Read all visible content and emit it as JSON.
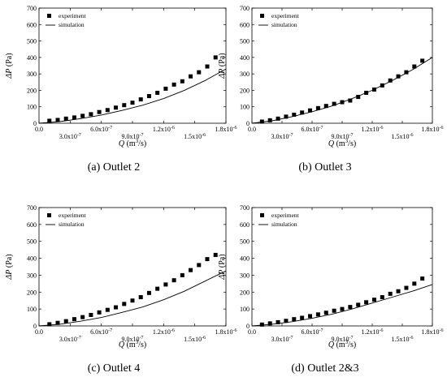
{
  "figure": {
    "captions": [
      "(a) Outlet 2",
      "(b) Outlet 3",
      "(c) Outlet 4",
      "(d) Outlet 2&3"
    ]
  },
  "chart_data": [
    {
      "type": "scatter",
      "caption": "(a) Outlet 2",
      "xlabel": "Q (m3/s)",
      "ylabel": "ΔP (Pa)",
      "xlim": [
        0,
        1.8e-06
      ],
      "ylim": [
        0,
        700
      ],
      "x_ticks": [
        "0.0",
        "3.0x10-7",
        "6.0x10-7",
        "9.0x10-7",
        "1.2x10-6",
        "1.5x10-6",
        "1.8x10-6"
      ],
      "y_ticks": [
        "0",
        "100",
        "200",
        "300",
        "400",
        "500",
        "600",
        "700"
      ],
      "legend": {
        "position": "top-left",
        "entries": [
          "experiment",
          "simulation"
        ]
      },
      "series": [
        {
          "name": "experiment",
          "kind": "markers",
          "x": [
            1e-07,
            1.8e-07,
            2.6e-07,
            3.4e-07,
            4.2e-07,
            5e-07,
            5.8e-07,
            6.6e-07,
            7.4e-07,
            8.2e-07,
            9e-07,
            9.8e-07,
            1.06e-06,
            1.14e-06,
            1.22e-06,
            1.3e-06,
            1.38e-06,
            1.46e-06,
            1.54e-06,
            1.62e-06,
            1.7e-06
          ],
          "y": [
            15,
            20,
            28,
            35,
            45,
            55,
            68,
            80,
            95,
            110,
            125,
            145,
            165,
            185,
            210,
            235,
            255,
            285,
            310,
            345,
            400
          ]
        },
        {
          "name": "simulation",
          "kind": "line",
          "x": [
            0,
            2e-07,
            4e-07,
            6e-07,
            8e-07,
            1e-06,
            1.2e-06,
            1.4e-06,
            1.6e-06,
            1.8e-06
          ],
          "y": [
            0,
            10,
            28,
            50,
            78,
            110,
            150,
            200,
            260,
            330
          ]
        }
      ]
    },
    {
      "type": "scatter",
      "caption": "(b) Outlet 3",
      "xlabel": "Q (m3/s)",
      "ylabel": "ΔP (Pa)",
      "xlim": [
        0,
        1.8e-06
      ],
      "ylim": [
        0,
        700
      ],
      "x_ticks": [
        "0.0",
        "3.0x10-7",
        "6.0x10-7",
        "9.0x10-7",
        "1.2x10-6",
        "1.5x10-6",
        "1.8x10-6"
      ],
      "y_ticks": [
        "0",
        "100",
        "200",
        "300",
        "400",
        "500",
        "600",
        "700"
      ],
      "legend": {
        "position": "top-left",
        "entries": [
          "experiment",
          "simulation"
        ]
      },
      "series": [
        {
          "name": "experiment",
          "kind": "markers",
          "x": [
            1e-07,
            1.8e-07,
            2.6e-07,
            3.4e-07,
            4.2e-07,
            5e-07,
            5.8e-07,
            6.6e-07,
            7.4e-07,
            8.2e-07,
            9e-07,
            9.8e-07,
            1.06e-06,
            1.14e-06,
            1.22e-06,
            1.3e-06,
            1.38e-06,
            1.46e-06,
            1.54e-06,
            1.62e-06,
            1.7e-06
          ],
          "y": [
            10,
            18,
            28,
            40,
            52,
            65,
            78,
            92,
            105,
            118,
            128,
            138,
            160,
            185,
            205,
            230,
            260,
            285,
            310,
            345,
            380
          ]
        },
        {
          "name": "simulation",
          "kind": "line",
          "x": [
            0,
            2e-07,
            4e-07,
            6e-07,
            8e-07,
            1e-06,
            1.2e-06,
            1.4e-06,
            1.6e-06,
            1.8e-06
          ],
          "y": [
            0,
            15,
            40,
            70,
            105,
            150,
            200,
            260,
            325,
            400
          ]
        }
      ]
    },
    {
      "type": "scatter",
      "caption": "(c) Outlet 4",
      "xlabel": "Q (m3/s)",
      "ylabel": "ΔP (Pa)",
      "xlim": [
        0,
        1.8e-06
      ],
      "ylim": [
        0,
        700
      ],
      "x_ticks": [
        "0.0",
        "3.0x10-7",
        "6.0x10-7",
        "9.0x10-7",
        "1.2x10-6",
        "1.5x10-6",
        "1.8x10-6"
      ],
      "y_ticks": [
        "0",
        "100",
        "200",
        "300",
        "400",
        "500",
        "600",
        "700"
      ],
      "legend": {
        "position": "top-left",
        "entries": [
          "experiment",
          "simulation"
        ]
      },
      "series": [
        {
          "name": "experiment",
          "kind": "markers",
          "x": [
            1e-07,
            1.8e-07,
            2.6e-07,
            3.4e-07,
            4.2e-07,
            5e-07,
            5.8e-07,
            6.6e-07,
            7.4e-07,
            8.2e-07,
            9e-07,
            9.8e-07,
            1.06e-06,
            1.14e-06,
            1.22e-06,
            1.3e-06,
            1.38e-06,
            1.46e-06,
            1.54e-06,
            1.62e-06,
            1.7e-06
          ],
          "y": [
            10,
            18,
            28,
            40,
            52,
            65,
            80,
            95,
            110,
            130,
            150,
            170,
            195,
            220,
            245,
            270,
            300,
            330,
            360,
            395,
            420
          ]
        },
        {
          "name": "simulation",
          "kind": "line",
          "x": [
            0,
            2e-07,
            4e-07,
            6e-07,
            8e-07,
            1e-06,
            1.2e-06,
            1.4e-06,
            1.6e-06,
            1.8e-06
          ],
          "y": [
            0,
            10,
            28,
            50,
            80,
            112,
            155,
            205,
            265,
            325
          ]
        }
      ]
    },
    {
      "type": "scatter",
      "caption": "(d) Outlet 2&3",
      "xlabel": "Q (m3/s)",
      "ylabel": "ΔP (Pa)",
      "xlim": [
        0,
        1.8e-06
      ],
      "ylim": [
        0,
        700
      ],
      "x_ticks": [
        "0.0",
        "3.0x10-7",
        "6.0x10-7",
        "9.0x10-7",
        "1.2x10-6",
        "1.5x10-6",
        "1.8x10-6"
      ],
      "y_ticks": [
        "0",
        "100",
        "200",
        "300",
        "400",
        "500",
        "600",
        "700"
      ],
      "legend": {
        "position": "top-left",
        "entries": [
          "experiment",
          "simulation"
        ]
      },
      "series": [
        {
          "name": "experiment",
          "kind": "markers",
          "x": [
            1e-07,
            1.8e-07,
            2.6e-07,
            3.4e-07,
            4.2e-07,
            5e-07,
            5.8e-07,
            6.6e-07,
            7.4e-07,
            8.2e-07,
            9e-07,
            9.8e-07,
            1.06e-06,
            1.14e-06,
            1.22e-06,
            1.3e-06,
            1.38e-06,
            1.46e-06,
            1.54e-06,
            1.62e-06,
            1.7e-06
          ],
          "y": [
            8,
            15,
            22,
            30,
            40,
            48,
            58,
            68,
            78,
            90,
            100,
            112,
            125,
            140,
            155,
            170,
            190,
            205,
            225,
            250,
            280
          ]
        },
        {
          "name": "simulation",
          "kind": "line",
          "x": [
            0,
            2e-07,
            4e-07,
            6e-07,
            8e-07,
            1e-06,
            1.2e-06,
            1.4e-06,
            1.6e-06,
            1.8e-06
          ],
          "y": [
            0,
            10,
            25,
            45,
            70,
            100,
            135,
            170,
            205,
            245
          ]
        }
      ]
    }
  ]
}
